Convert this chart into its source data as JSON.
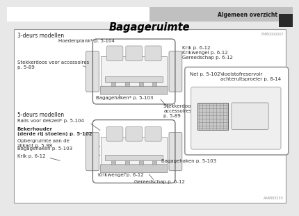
{
  "title": "Bagageruimte",
  "header_right": "Algemeen overzicht",
  "page_bg": "#e8e8e8",
  "content_bg": "#ffffff",
  "border_color": "#aaaaaa",
  "top_section_label": "3-deurs modellen",
  "bottom_section_label": "5-deurs modellen",
  "label_top_hoedenplank": "Hoedenplank* p. 5-104",
  "label_top_stekkerdoos": "Stekkerdoos voor accessoires\np. 5-89",
  "label_top_right": "Krik p. 6-12\nKrikwengel p. 6-12\nGereedschap p. 6-12",
  "label_top_bagagehaken": "Bagagehaken* p. 5-103",
  "label_top_stekkerdoos2": "Stekkerdoos voor\naccessoires\np. 5-89",
  "label_bot_rails": "Rails voor dekzeil* p. 5-104",
  "label_bot_beker": "Bekerhouder\n(derde rij stoelen) p. 5-102",
  "label_bot_opberg": "Opbergruimte aan de\nzijkant p. 5-98",
  "label_bot_haken1": "Bagagehaken p. 5-103",
  "label_bot_krik": "Krik p. 6-12",
  "label_bot_krikwengel": "Krikwengel p. 6-12",
  "label_bot_gereed": "Gereedschap p. 6-12",
  "label_bot_haken2": "Bagagehaken p. 5-103",
  "label_inset_net": "Net p. 5-102",
  "label_inset_vloei": "Vloeistofreservoir\nachteruitsproeier p. 8-14",
  "code_bottom_right": "AA8003233",
  "code_top_right": "EMB0000007",
  "header_gradient_left": "#c8c8c8",
  "header_gradient_right": "#e8e8e8",
  "dark_sq_color": "#2a2a2a",
  "fs_small": 5.0,
  "fs_title": 10.5,
  "fs_header": 5.5,
  "fs_section": 5.5,
  "fs_code": 3.5
}
